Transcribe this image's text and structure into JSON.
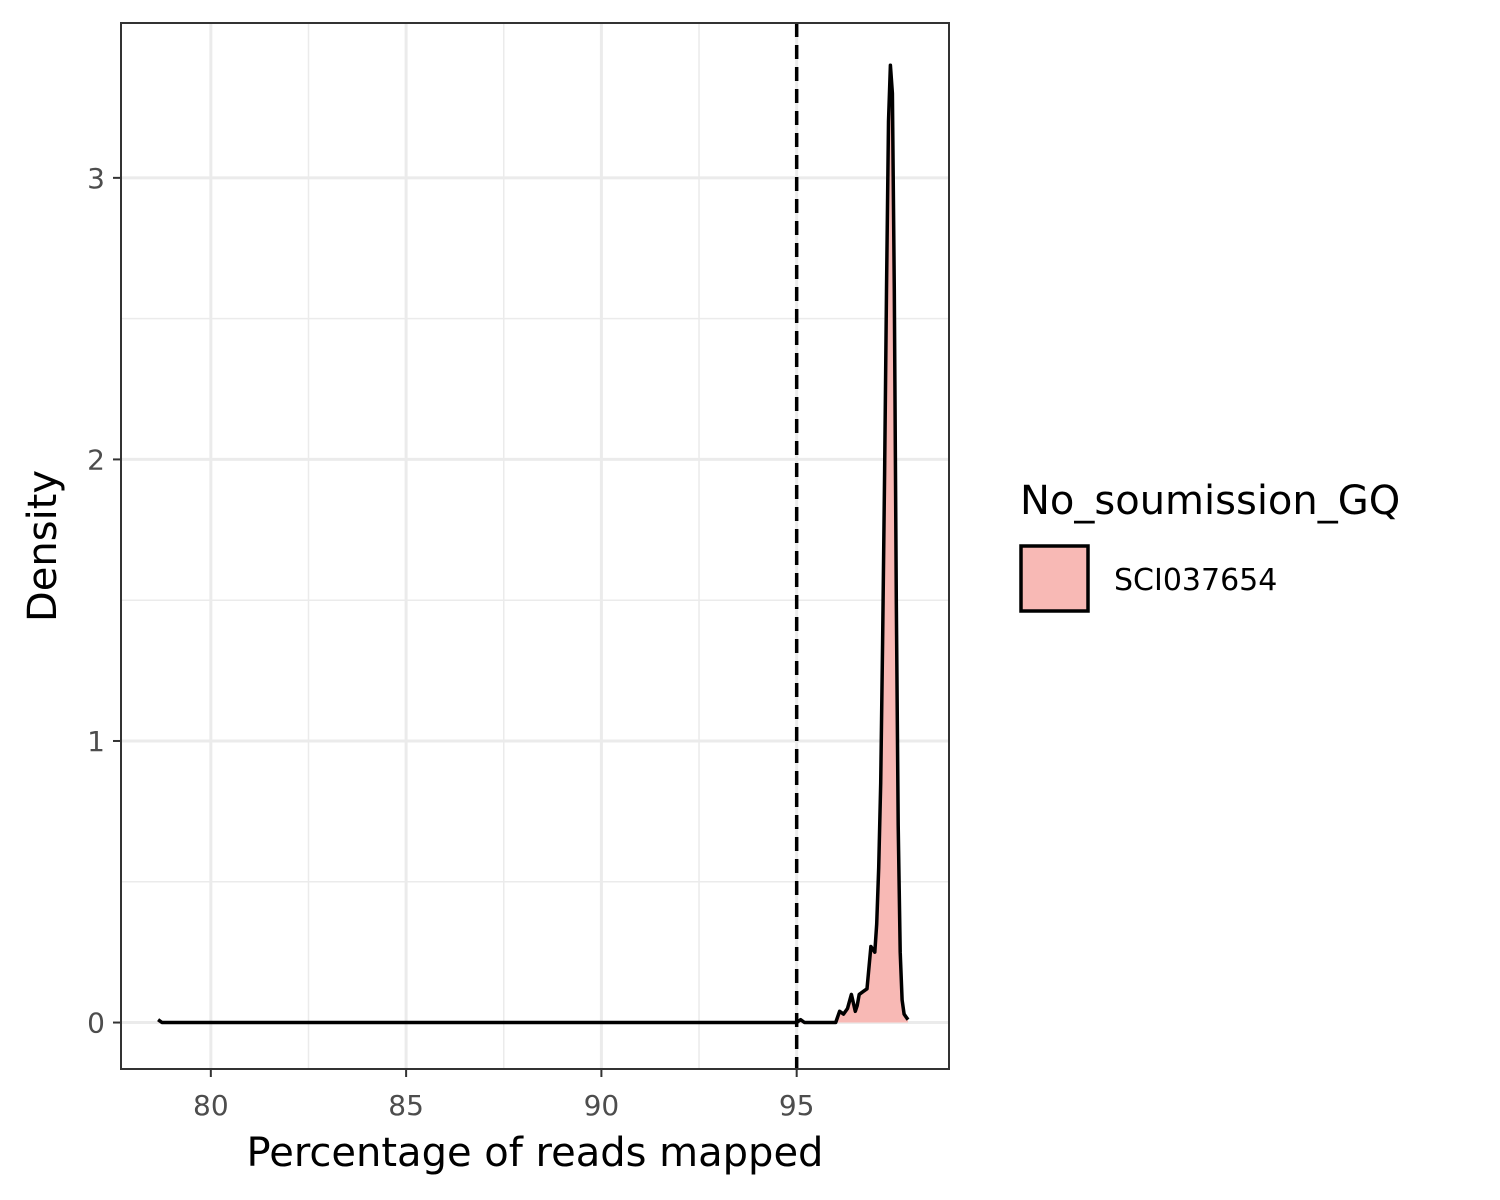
{
  "chart_data": {
    "type": "area",
    "xlabel": "Percentage of reads mapped",
    "ylabel": "Density",
    "xlim": [
      77.7,
      98.9
    ],
    "ylim": [
      -0.165,
      3.55
    ],
    "x_ticks": [
      80,
      85,
      90,
      95
    ],
    "y_ticks": [
      0,
      1,
      2,
      3
    ],
    "x_minor_ticks": [
      82.5,
      87.5,
      92.5
    ],
    "y_minor_ticks": [
      0.5,
      1.5,
      2.5
    ],
    "grid": true,
    "reference_line": {
      "x": 95,
      "style": "dashed"
    },
    "legend": {
      "title": "No_soumission_GQ",
      "placement": "right",
      "entries": [
        {
          "label": "SCI037654",
          "color": "#F8B9B5"
        }
      ]
    },
    "series": [
      {
        "name": "SCI037654",
        "fill_color": "#F8B9B5",
        "line_color": "#000000",
        "x": [
          78.65,
          78.75,
          79.0,
          80.0,
          85.0,
          90.0,
          94.9,
          95.0,
          95.1,
          95.2,
          95.3,
          95.5,
          96.0,
          96.1,
          96.2,
          96.3,
          96.4,
          96.5,
          96.55,
          96.6,
          96.7,
          96.8,
          96.9,
          97.0,
          97.05,
          97.1,
          97.15,
          97.2,
          97.25,
          97.3,
          97.35,
          97.4,
          97.45,
          97.5,
          97.55,
          97.6,
          97.65,
          97.7,
          97.75,
          97.8,
          97.85
        ],
        "y": [
          0.01,
          0.0,
          0.0,
          0.0,
          0.0,
          0.0,
          0.0,
          0.0,
          0.01,
          0.0,
          0.0,
          0.0,
          0.0,
          0.04,
          0.03,
          0.05,
          0.1,
          0.04,
          0.06,
          0.1,
          0.11,
          0.12,
          0.27,
          0.25,
          0.35,
          0.55,
          0.85,
          1.35,
          1.95,
          2.6,
          3.2,
          3.4,
          3.3,
          2.6,
          1.5,
          0.7,
          0.25,
          0.08,
          0.03,
          0.02,
          0.01
        ]
      }
    ]
  }
}
